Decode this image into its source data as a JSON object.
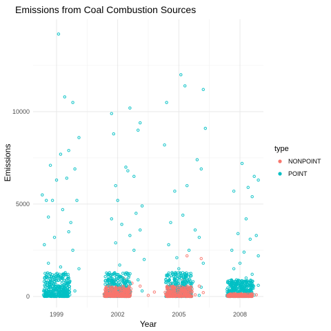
{
  "chart_data": {
    "type": "scatter",
    "title": "Emissions from Coal Combustion Sources",
    "xlabel": "Year",
    "ylabel": "Emissions",
    "x_ticks": [
      1999,
      2002,
      2005,
      2008
    ],
    "y_ticks": [
      0,
      5000,
      10000
    ],
    "xlim": [
      1997.85,
      2009.15
    ],
    "ylim": [
      -600,
      15000
    ],
    "jitter": true,
    "grid": true,
    "legend": {
      "title": "type",
      "position": "right"
    },
    "series": [
      {
        "name": "NONPOINT",
        "color": "#F8766D",
        "points": [
          [
            2001.6,
            650
          ],
          [
            2001.8,
            820
          ],
          [
            2001.9,
            430
          ],
          [
            2002.3,
            980
          ],
          [
            2002.7,
            720
          ],
          [
            2003.1,
            560
          ],
          [
            2003.8,
            240
          ],
          [
            2002.1,
            380
          ],
          [
            2004.6,
            690
          ],
          [
            2004.9,
            420
          ],
          [
            2005.2,
            870
          ],
          [
            2005.6,
            310
          ],
          [
            2006.0,
            560
          ],
          [
            2006.2,
            210
          ],
          [
            2004.7,
            150
          ],
          [
            2005.4,
            2200
          ],
          [
            2006.1,
            2050
          ],
          [
            2007.6,
            180
          ],
          [
            2008.2,
            120
          ],
          [
            2008.8,
            90
          ],
          [
            2002.5,
            120
          ],
          [
            2003.5,
            60
          ],
          [
            2005.8,
            90
          ],
          [
            2007.9,
            40
          ],
          [
            2001.7,
            30
          ]
        ]
      },
      {
        "name": "POINT",
        "color": "#00BFC4",
        "points": [
          [
            1999.1,
            14200
          ],
          [
            1999.4,
            10800
          ],
          [
            1999.8,
            10500
          ],
          [
            1999.2,
            7700
          ],
          [
            1999.6,
            7900
          ],
          [
            2000.1,
            8600
          ],
          [
            1998.7,
            7100
          ],
          [
            1998.3,
            5500
          ],
          [
            1999.0,
            6300
          ],
          [
            1999.9,
            6900
          ],
          [
            1998.8,
            5200
          ],
          [
            1999.5,
            6400
          ],
          [
            1998.5,
            5200
          ],
          [
            2000.0,
            5200
          ],
          [
            1998.6,
            4300
          ],
          [
            1999.3,
            4700
          ],
          [
            1999.7,
            4000
          ],
          [
            1998.9,
            3200
          ],
          [
            1999.6,
            3500
          ],
          [
            1998.4,
            2800
          ],
          [
            1999.8,
            2500
          ],
          [
            1998.6,
            1800
          ],
          [
            1999.2,
            1600
          ],
          [
            2000.1,
            1500
          ],
          [
            1998.9,
            900
          ],
          [
            1999.5,
            700
          ],
          [
            1998.4,
            400
          ],
          [
            1999.9,
            300
          ],
          [
            1999.1,
            120
          ],
          [
            1998.7,
            60
          ],
          [
            2001.7,
            9900
          ],
          [
            2001.8,
            8800
          ],
          [
            2002.6,
            10200
          ],
          [
            2003.1,
            9400
          ],
          [
            2003.0,
            9000
          ],
          [
            2002.5,
            6800
          ],
          [
            2002.8,
            6500
          ],
          [
            2001.9,
            6000
          ],
          [
            2002.4,
            7000
          ],
          [
            2002.0,
            5200
          ],
          [
            2003.2,
            4900
          ],
          [
            2002.9,
            4500
          ],
          [
            2001.7,
            4200
          ],
          [
            2002.2,
            3900
          ],
          [
            2003.1,
            3600
          ],
          [
            2002.6,
            3300
          ],
          [
            2001.9,
            2900
          ],
          [
            2002.8,
            2500
          ],
          [
            2003.3,
            2000
          ],
          [
            2002.1,
            1700
          ],
          [
            2002.5,
            1200
          ],
          [
            2003.0,
            900
          ],
          [
            2001.8,
            700
          ],
          [
            2002.4,
            500
          ],
          [
            2003.2,
            300
          ],
          [
            2004.4,
            10500
          ],
          [
            2005.3,
            11400
          ],
          [
            2006.2,
            11200
          ],
          [
            2005.1,
            12000
          ],
          [
            2006.3,
            9100
          ],
          [
            2004.3,
            8200
          ],
          [
            2005.9,
            7400
          ],
          [
            2006.1,
            6900
          ],
          [
            2005.4,
            6000
          ],
          [
            2004.8,
            5700
          ],
          [
            2005.2,
            4400
          ],
          [
            2004.6,
            4000
          ],
          [
            2005.8,
            3600
          ],
          [
            2006.0,
            3200
          ],
          [
            2004.5,
            2800
          ],
          [
            2005.5,
            2500
          ],
          [
            2004.9,
            2100
          ],
          [
            2006.2,
            1800
          ],
          [
            2005.0,
            1500
          ],
          [
            2004.4,
            1100
          ],
          [
            2005.7,
            800
          ],
          [
            2006.1,
            500
          ],
          [
            2004.7,
            250
          ],
          [
            2005.3,
            100
          ],
          [
            2006.0,
            60
          ],
          [
            2008.1,
            7200
          ],
          [
            2008.7,
            6500
          ],
          [
            2008.9,
            6300
          ],
          [
            2008.4,
            5900
          ],
          [
            2007.7,
            5700
          ],
          [
            2008.6,
            5400
          ],
          [
            2008.3,
            4200
          ],
          [
            2007.9,
            3400
          ],
          [
            2008.8,
            3300
          ],
          [
            2008.5,
            3100
          ],
          [
            2007.6,
            2500
          ],
          [
            2008.2,
            2400
          ],
          [
            2008.9,
            2200
          ],
          [
            2008.0,
            1800
          ],
          [
            2007.7,
            1500
          ],
          [
            2008.6,
            1200
          ],
          [
            2008.3,
            1000
          ],
          [
            2007.8,
            800
          ],
          [
            2008.9,
            600
          ],
          [
            2008.1,
            400
          ],
          [
            2008.5,
            250
          ],
          [
            2007.6,
            150
          ],
          [
            2008.7,
            80
          ],
          [
            2008.2,
            40
          ],
          [
            2007.9,
            20
          ]
        ]
      }
    ]
  }
}
